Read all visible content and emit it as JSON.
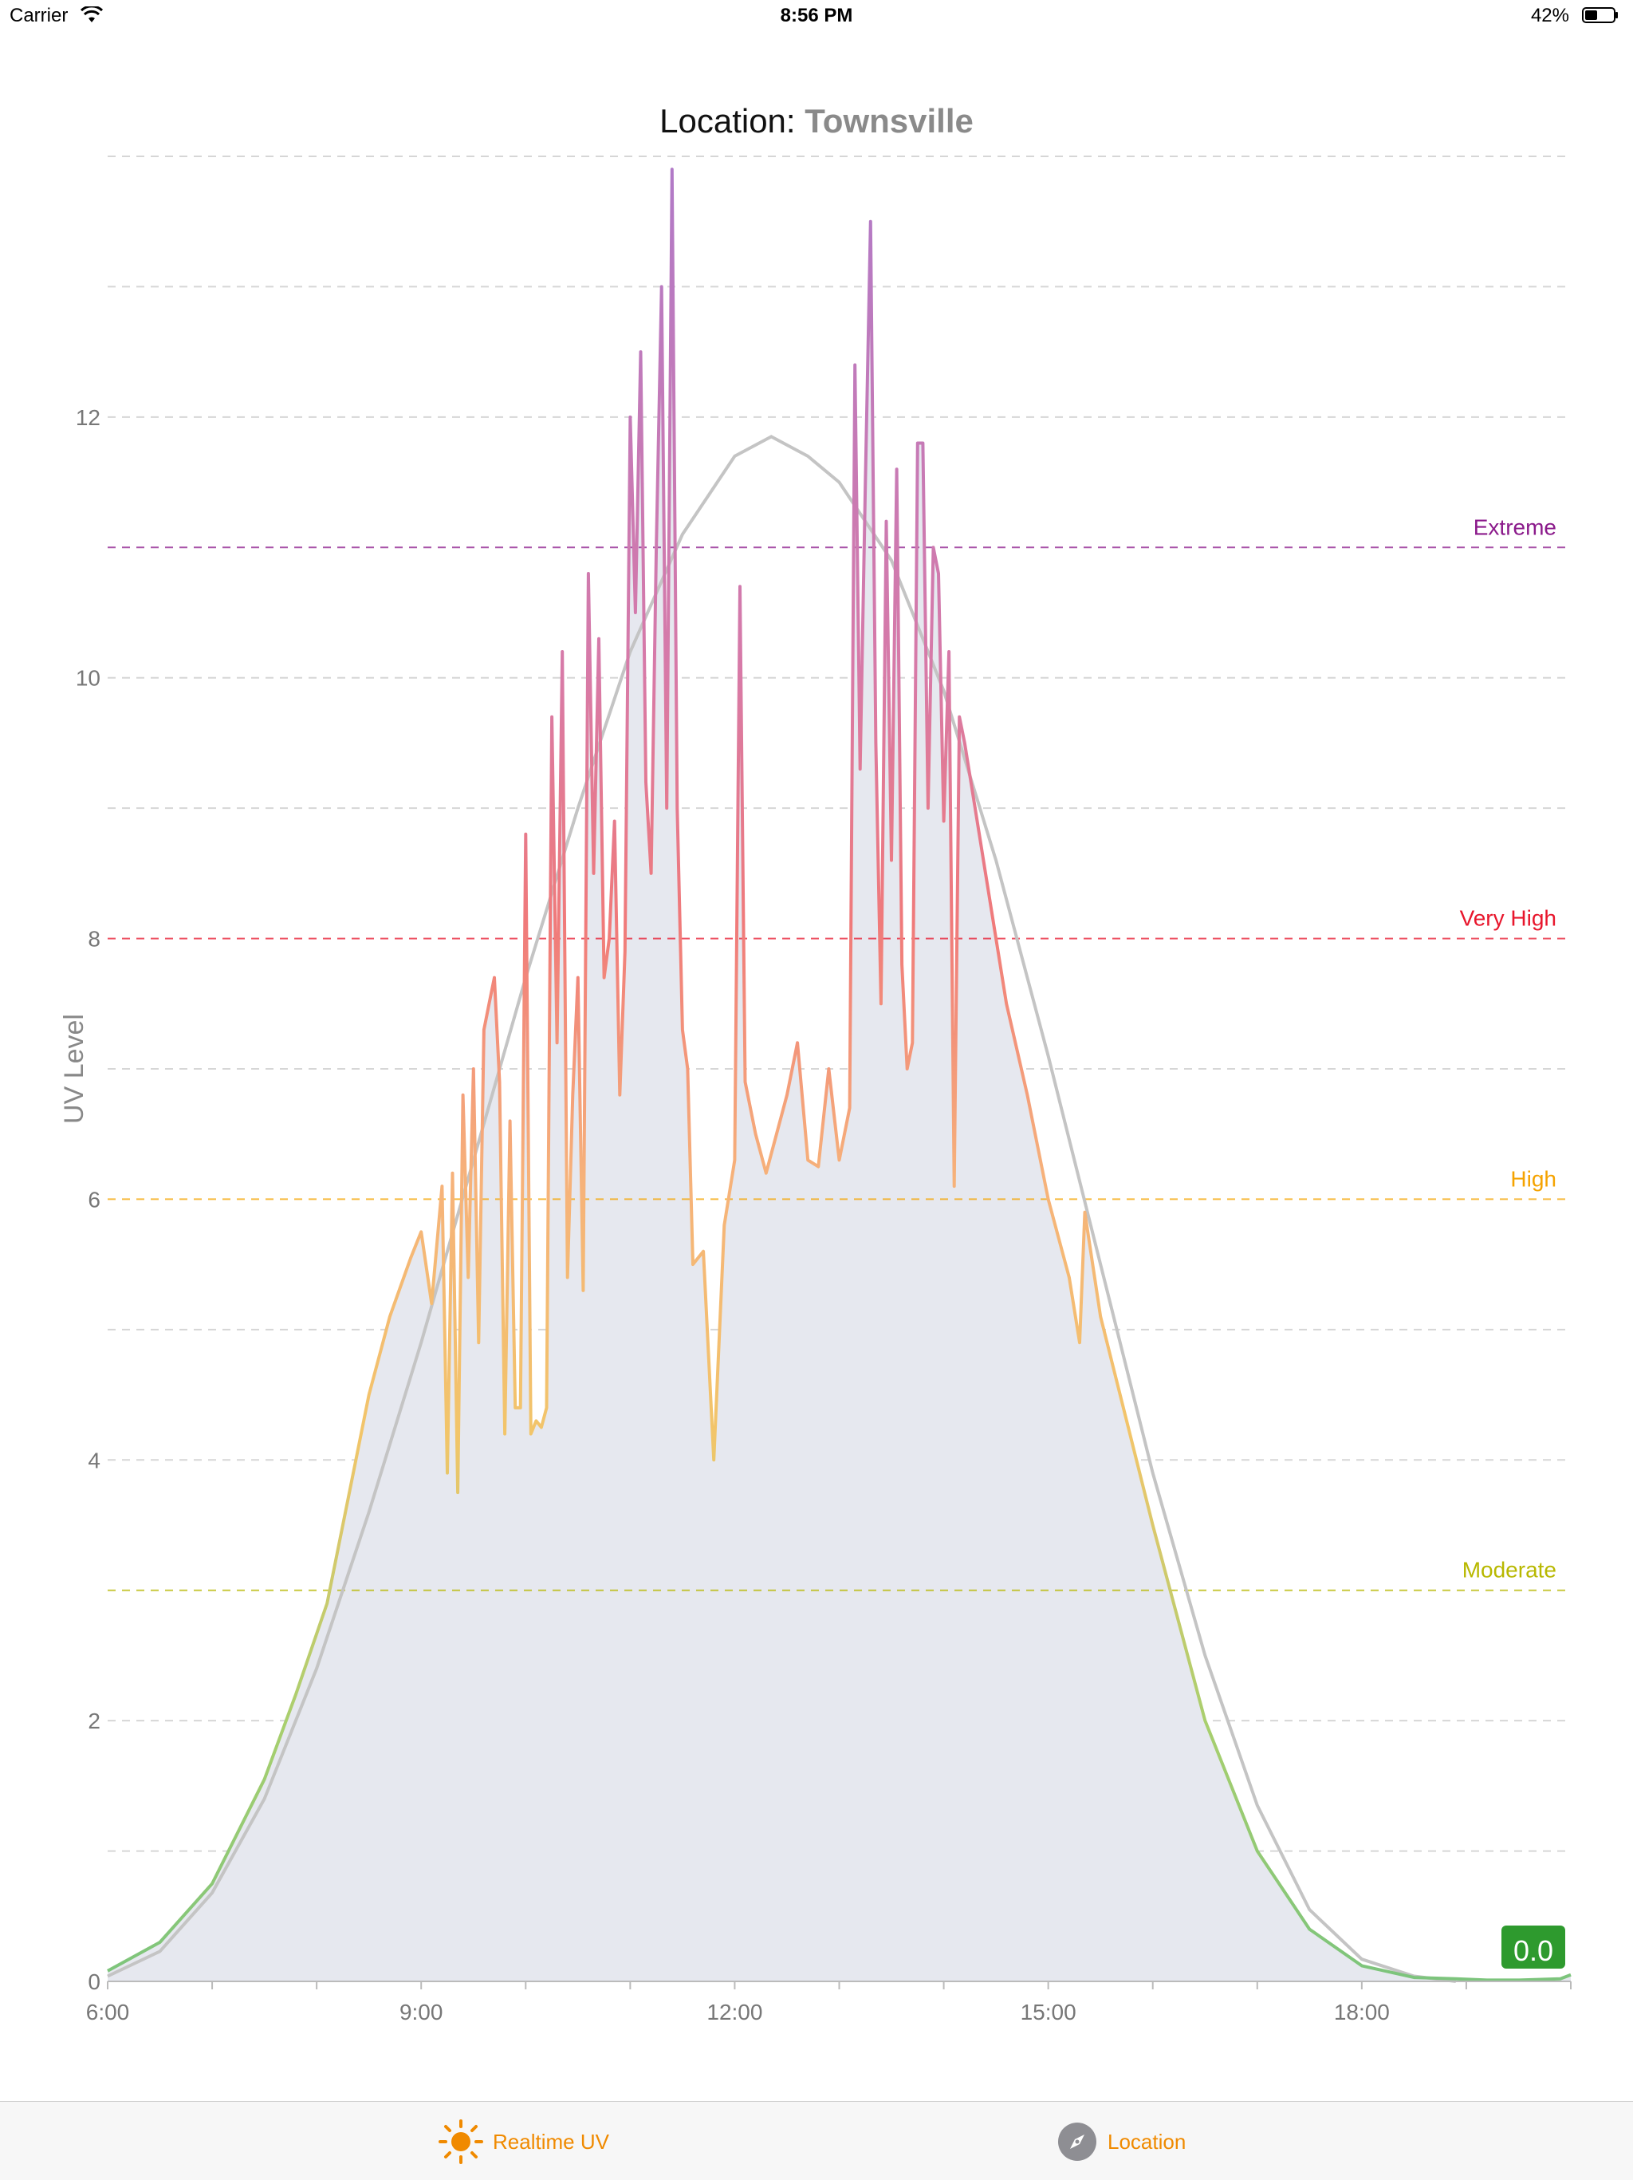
{
  "status_bar": {
    "carrier": "Carrier",
    "time": "8:56 PM",
    "battery": "42%"
  },
  "header": {
    "location_label": "Location:",
    "location_value": "Townsville"
  },
  "current_value": "0.0",
  "colors": {
    "accent": "#f08a00",
    "extreme": "#8b1a8b",
    "very_high": "#e8162c",
    "high": "#f5a300",
    "moderate": "#b8b800",
    "badge": "#2e9a2e",
    "fill": "#e6e8ef",
    "model_curve": "#bdbdbd"
  },
  "tabs": [
    {
      "label": "Realtime UV",
      "icon": "sun-icon",
      "active": true
    },
    {
      "label": "Location",
      "icon": "compass-icon",
      "active": false
    }
  ],
  "chart_data": {
    "type": "line",
    "title": "",
    "xlabel": "",
    "ylabel": "UV Level",
    "xlim": [
      6,
      20
    ],
    "ylim": [
      0,
      14
    ],
    "x_ticks": [
      {
        "value": 6,
        "label": "6:00"
      },
      {
        "value": 9,
        "label": "9:00"
      },
      {
        "value": 12,
        "label": "12:00"
      },
      {
        "value": 15,
        "label": "15:00"
      },
      {
        "value": 18,
        "label": "18:00"
      }
    ],
    "y_ticks": [
      0,
      2,
      4,
      6,
      8,
      10,
      12
    ],
    "grid": true,
    "thresholds": [
      {
        "label": "Moderate",
        "value": 3,
        "color": "#b8b800"
      },
      {
        "label": "High",
        "value": 6,
        "color": "#f5a300"
      },
      {
        "label": "Very High",
        "value": 8,
        "color": "#e8162c"
      },
      {
        "label": "Extreme",
        "value": 11,
        "color": "#8b1a8b"
      }
    ],
    "series": [
      {
        "kind": "measured",
        "x": [
          6.0,
          6.5,
          7.0,
          7.5,
          7.8,
          8.1,
          8.3,
          8.5,
          8.7,
          8.9,
          9.0,
          9.1,
          9.2,
          9.25,
          9.3,
          9.35,
          9.4,
          9.45,
          9.5,
          9.55,
          9.6,
          9.65,
          9.7,
          9.75,
          9.8,
          9.85,
          9.9,
          9.95,
          10.0,
          10.05,
          10.1,
          10.15,
          10.2,
          10.25,
          10.3,
          10.35,
          10.4,
          10.45,
          10.5,
          10.55,
          10.6,
          10.65,
          10.7,
          10.75,
          10.8,
          10.85,
          10.9,
          10.95,
          11.0,
          11.05,
          11.1,
          11.15,
          11.2,
          11.25,
          11.3,
          11.35,
          11.4,
          11.45,
          11.5,
          11.55,
          11.6,
          11.7,
          11.8,
          11.9,
          12.0,
          12.05,
          12.1,
          12.2,
          12.3,
          12.4,
          12.5,
          12.6,
          12.7,
          12.8,
          12.9,
          13.0,
          13.1,
          13.15,
          13.2,
          13.25,
          13.3,
          13.35,
          13.4,
          13.45,
          13.5,
          13.55,
          13.6,
          13.65,
          13.7,
          13.75,
          13.8,
          13.85,
          13.9,
          13.95,
          14.0,
          14.05,
          14.1,
          14.15,
          14.2,
          14.3,
          14.4,
          14.6,
          14.8,
          15.0,
          15.2,
          15.3,
          15.35,
          15.5,
          16.0,
          16.5,
          17.0,
          17.5,
          18.0,
          18.5,
          18.9,
          19.2,
          19.5,
          19.9,
          20.0
        ],
        "y": [
          0.08,
          0.3,
          0.75,
          1.55,
          2.2,
          2.9,
          3.7,
          4.5,
          5.1,
          5.55,
          5.75,
          5.2,
          6.1,
          3.9,
          6.2,
          3.75,
          6.8,
          5.4,
          7.0,
          4.9,
          7.3,
          7.5,
          7.7,
          6.9,
          4.2,
          6.6,
          4.4,
          4.4,
          8.8,
          4.2,
          4.3,
          4.25,
          4.4,
          9.7,
          7.2,
          10.2,
          5.4,
          6.8,
          7.7,
          5.3,
          10.8,
          8.5,
          10.3,
          7.7,
          8.0,
          8.9,
          6.8,
          7.9,
          12.0,
          10.5,
          12.5,
          9.2,
          8.5,
          11.0,
          13.0,
          9.0,
          13.9,
          9.0,
          7.3,
          7.0,
          5.5,
          5.6,
          4.0,
          5.8,
          6.3,
          10.7,
          6.9,
          6.5,
          6.2,
          6.5,
          6.8,
          7.2,
          6.3,
          6.25,
          7.0,
          6.3,
          6.7,
          12.4,
          9.3,
          11.5,
          13.5,
          9.5,
          7.5,
          11.2,
          8.6,
          11.6,
          7.8,
          7.0,
          7.2,
          11.8,
          11.8,
          9.0,
          11.0,
          10.8,
          8.9,
          10.2,
          6.1,
          9.7,
          9.5,
          9.0,
          8.5,
          7.5,
          6.8,
          6.0,
          5.4,
          4.9,
          5.9,
          5.1,
          3.5,
          2.0,
          1.0,
          0.4,
          0.12,
          0.03,
          0.02,
          0.01,
          0.01,
          0.02,
          0.05
        ]
      },
      {
        "kind": "forecast",
        "x": [
          6.0,
          6.5,
          7.0,
          7.5,
          8.0,
          8.5,
          9.0,
          9.5,
          10.0,
          10.5,
          11.0,
          11.5,
          12.0,
          12.35,
          12.7,
          13.0,
          13.5,
          14.0,
          14.5,
          15.0,
          15.5,
          16.0,
          16.5,
          17.0,
          17.5,
          18.0,
          18.5,
          18.9
        ],
        "y": [
          0.04,
          0.23,
          0.68,
          1.4,
          2.4,
          3.6,
          4.9,
          6.3,
          7.7,
          9.0,
          10.2,
          11.1,
          11.7,
          11.85,
          11.7,
          11.5,
          10.9,
          9.9,
          8.6,
          7.1,
          5.5,
          3.9,
          2.5,
          1.35,
          0.55,
          0.17,
          0.04,
          0.0
        ]
      }
    ]
  }
}
